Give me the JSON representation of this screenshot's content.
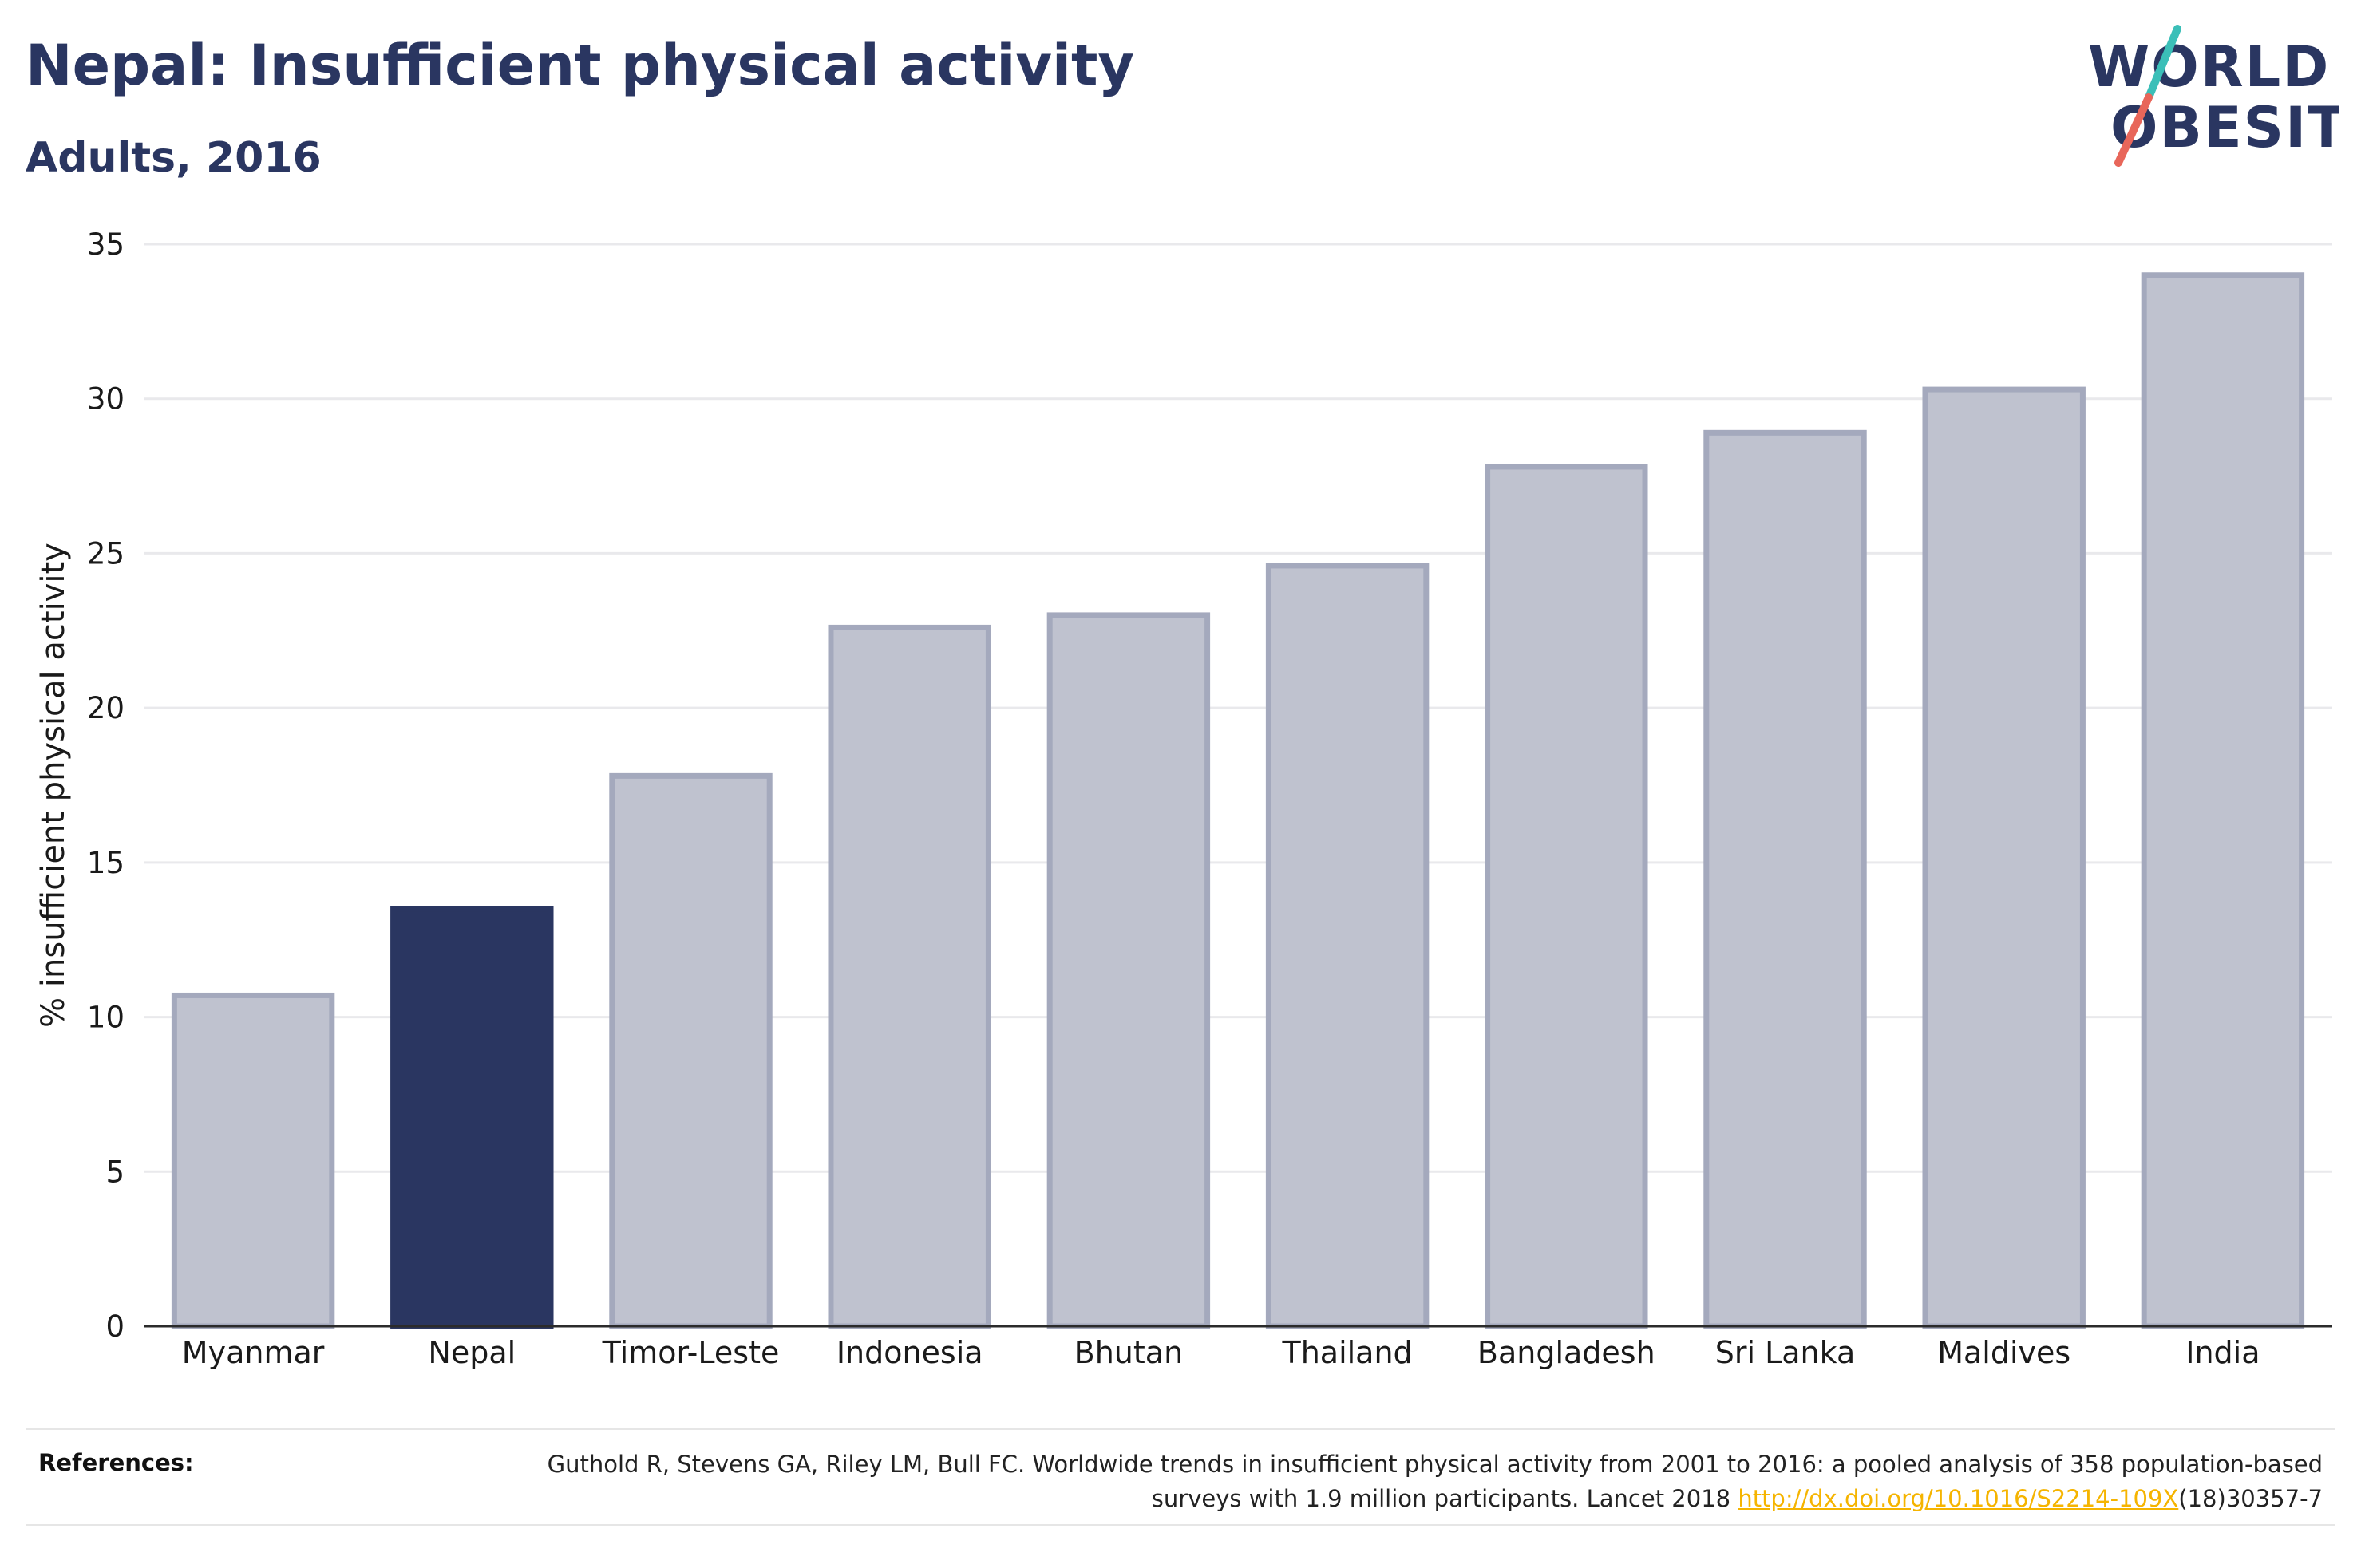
{
  "header": {
    "title": "Nepal: Insufficient physical activity",
    "subtitle": "Adults, 2016"
  },
  "logo": {
    "line1": "WORLD",
    "line2": "OBESITY",
    "slash_color_top": "#3bbfb8",
    "slash_color_bottom": "#e8665a"
  },
  "chart_data": {
    "type": "bar",
    "categories": [
      "Myanmar",
      "Nepal",
      "Timor-Leste",
      "Indonesia",
      "Bhutan",
      "Thailand",
      "Bangladesh",
      "Sri Lanka",
      "Maldives",
      "India"
    ],
    "values": [
      10.7,
      13.5,
      17.8,
      22.6,
      23.0,
      24.6,
      27.8,
      28.9,
      30.3,
      34.0
    ],
    "highlight": "Nepal",
    "title": "Nepal: Insufficient physical activity",
    "subtitle": "Adults, 2016",
    "xlabel": "",
    "ylabel": "% insufficient physical activity",
    "ylim": [
      0,
      35
    ],
    "yticks": [
      0,
      5,
      10,
      15,
      20,
      25,
      30,
      35
    ],
    "grid": true,
    "colors": {
      "highlight": "#2a3661",
      "other_fill": "#bfc2cf",
      "other_stroke": "#a4a9bd"
    }
  },
  "references": {
    "label": "References:",
    "text_before": "Guthold R, Stevens GA, Riley LM, Bull FC. Worldwide trends in insufficient physical activity from 2001 to 2016: a pooled analysis of 358 population-based surveys with 1.9 million participants. Lancet 2018 ",
    "link": "http://dx.doi.org/10.1016/S2214-109X",
    "text_after": "(18)30357-7"
  }
}
